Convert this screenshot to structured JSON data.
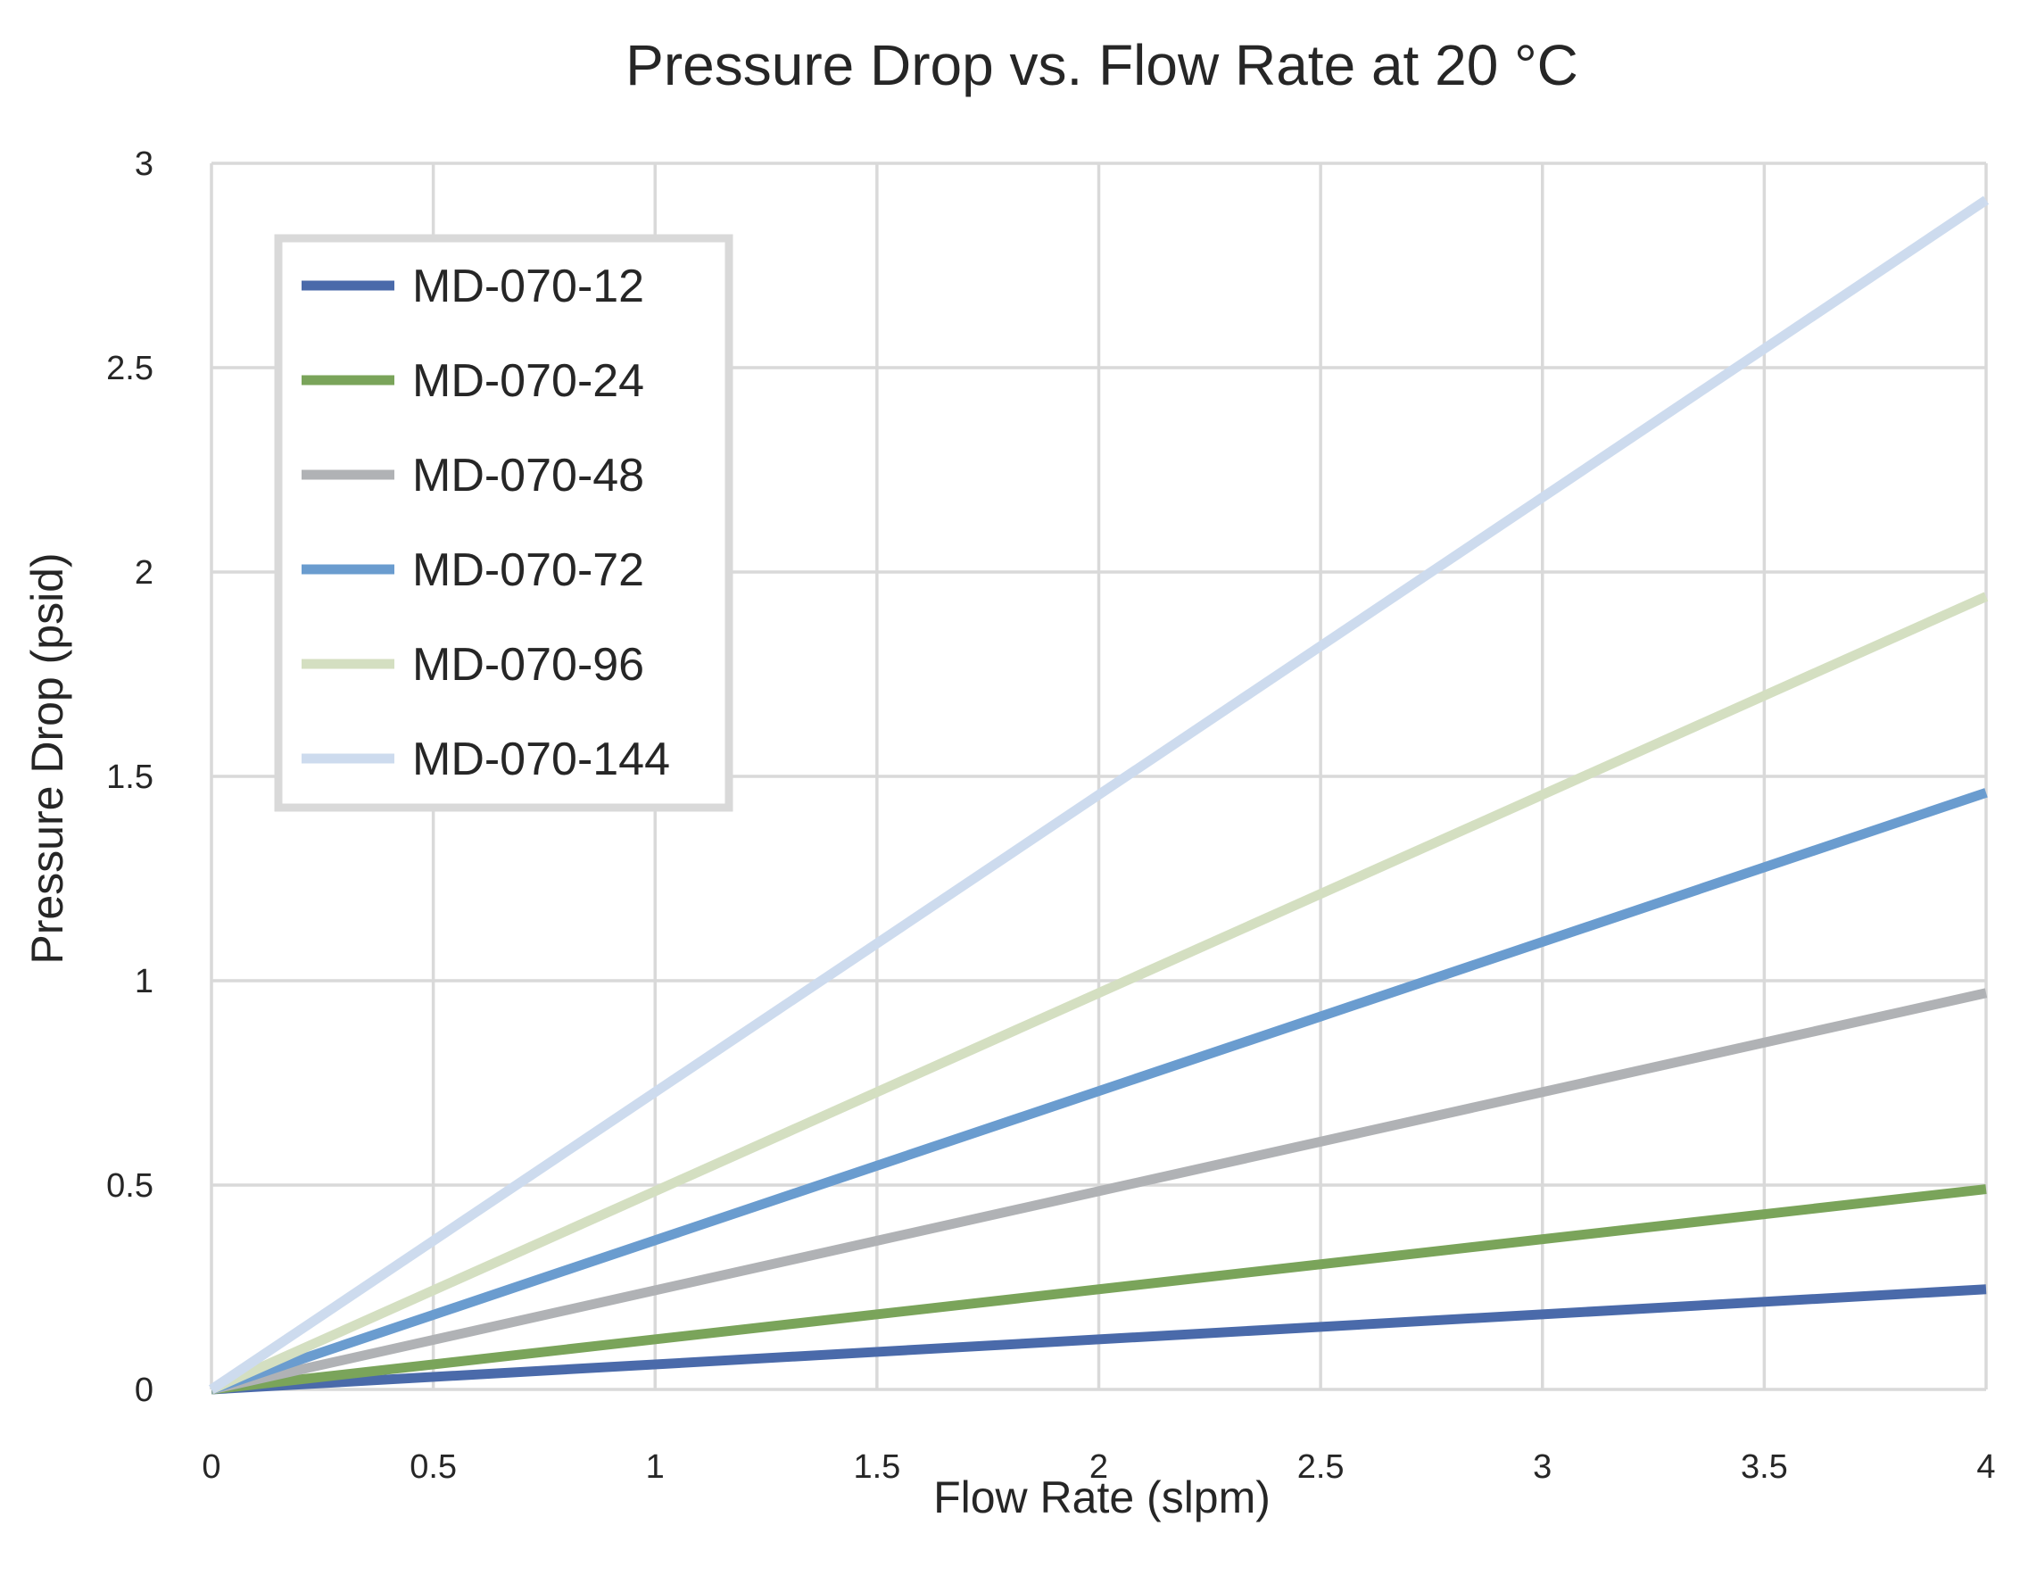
{
  "chart_data": {
    "type": "line",
    "title": "Pressure Drop vs. Flow Rate at 20 °C",
    "xlabel": "Flow Rate (slpm)",
    "ylabel": "Pressure Drop (psid)",
    "xlim": [
      0,
      4
    ],
    "ylim": [
      0,
      3
    ],
    "x_ticks": [
      "0",
      "0.5",
      "1",
      "1.5",
      "2",
      "2.5",
      "3",
      "3.5",
      "4"
    ],
    "y_ticks": [
      "0",
      "0.5",
      "1",
      "1.5",
      "2",
      "2.5",
      "3"
    ],
    "grid": true,
    "legend_position": "top-left",
    "x": [
      0,
      4
    ],
    "series": [
      {
        "name": "MD-070-12",
        "color": "#4a6aaa",
        "values": [
          0,
          0.245
        ]
      },
      {
        "name": "MD-070-24",
        "color": "#7aa45a",
        "values": [
          0,
          0.49
        ]
      },
      {
        "name": "MD-070-48",
        "color": "#b0b2b5",
        "values": [
          0,
          0.97
        ]
      },
      {
        "name": "MD-070-72",
        "color": "#6a9ccf",
        "values": [
          0,
          1.46
        ]
      },
      {
        "name": "MD-070-96",
        "color": "#d4dfc1",
        "values": [
          0,
          1.94
        ]
      },
      {
        "name": "MD-070-144",
        "color": "#cddbee",
        "values": [
          0,
          2.91
        ]
      }
    ]
  }
}
